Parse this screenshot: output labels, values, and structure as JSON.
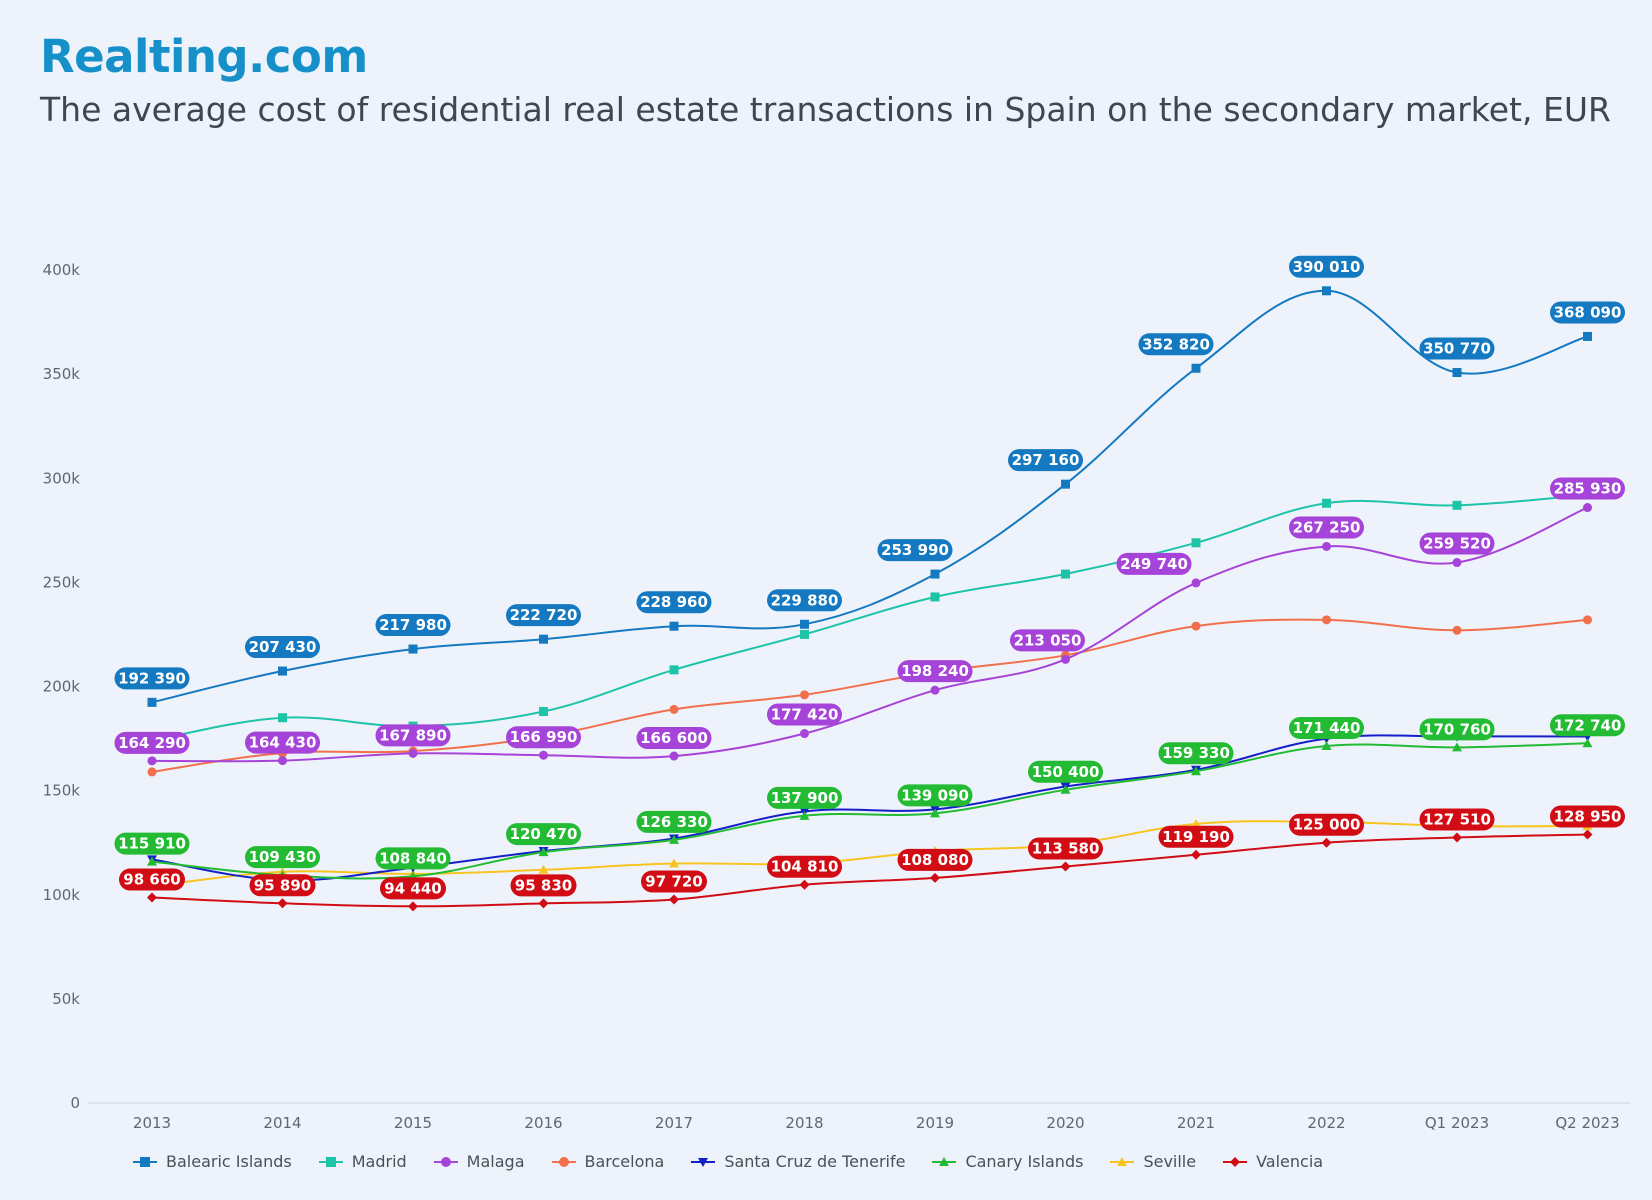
{
  "brand": "Realting.com",
  "chart_data": {
    "type": "line",
    "title": "The average cost of residential real estate transactions in Spain on the secondary market, EUR",
    "categories": [
      "2013",
      "2014",
      "2015",
      "2016",
      "2017",
      "2018",
      "2019",
      "2020",
      "2021",
      "2022",
      "Q1 2023",
      "Q2 2023"
    ],
    "ylim": [
      0,
      400000
    ],
    "yticks": [
      {
        "value": 0,
        "label": "0"
      },
      {
        "value": 50000,
        "label": "50k"
      },
      {
        "value": 100000,
        "label": "100k"
      },
      {
        "value": 150000,
        "label": "150k"
      },
      {
        "value": 200000,
        "label": "200k"
      },
      {
        "value": 250000,
        "label": "250k"
      },
      {
        "value": 300000,
        "label": "300k"
      },
      {
        "value": 350000,
        "label": "350k"
      },
      {
        "value": 400000,
        "label": "400k"
      }
    ],
    "grid": false,
    "legend_position": "bottom",
    "series": [
      {
        "name": "Balearic Islands",
        "color": "#1479c0",
        "marker": "square",
        "values": [
          192390,
          207430,
          217980,
          222720,
          228960,
          229880,
          253990,
          297160,
          352820,
          390010,
          350770,
          368090
        ],
        "labels": [
          "192 390",
          "207 430",
          "217 980",
          "222 720",
          "228 960",
          "229 880",
          "253 990",
          "297 160",
          "352 820",
          "390 010",
          "350 770",
          "368 090"
        ]
      },
      {
        "name": "Madrid",
        "color": "#1ec4a8",
        "marker": "square",
        "values": [
          174000,
          185000,
          181000,
          188000,
          208000,
          225000,
          243000,
          254000,
          269000,
          288000,
          287000,
          292000
        ],
        "labels": []
      },
      {
        "name": "Malaga",
        "color": "#a643d8",
        "marker": "circle",
        "values": [
          164290,
          164430,
          167890,
          166990,
          166600,
          177420,
          198240,
          213050,
          249740,
          267250,
          259520,
          285930
        ],
        "labels": [
          "164 290",
          "164 430",
          "167 890",
          "166 990",
          "166 600",
          "177 420",
          "198 240",
          "213 050",
          "249 740",
          "267 250",
          "259 520",
          "285 930"
        ]
      },
      {
        "name": "Barcelona",
        "color": "#f26f4e",
        "marker": "circle",
        "values": [
          159000,
          168000,
          169000,
          176000,
          189000,
          196000,
          207000,
          215000,
          229000,
          232000,
          227000,
          232000
        ],
        "labels": []
      },
      {
        "name": "Santa Cruz de Tenerife",
        "color": "#1420c8",
        "marker": "triangle-down",
        "values": [
          117000,
          107000,
          113000,
          121000,
          127000,
          140000,
          141000,
          152000,
          160000,
          175000,
          176000,
          176000
        ],
        "labels": []
      },
      {
        "name": "Canary Islands",
        "color": "#22bb33",
        "marker": "triangle",
        "values": [
          115910,
          109430,
          108840,
          120470,
          126330,
          137900,
          139090,
          150400,
          159330,
          171440,
          170760,
          172740
        ],
        "labels": [
          "115 910",
          "109 430",
          "108 840",
          "120 470",
          "126 330",
          "137 900",
          "139 090",
          "150 400",
          "159 330",
          "171 440",
          "170 760",
          "172 740"
        ]
      },
      {
        "name": "Seville",
        "color": "#f8c420",
        "marker": "triangle",
        "values": [
          104000,
          111000,
          110000,
          112000,
          115000,
          115000,
          121000,
          124000,
          134000,
          135000,
          133000,
          133000
        ],
        "labels": []
      },
      {
        "name": "Valencia",
        "color": "#d10c14",
        "marker": "diamond",
        "values": [
          98660,
          95890,
          94440,
          95830,
          97720,
          104810,
          108080,
          113580,
          119190,
          125000,
          127510,
          128950
        ],
        "labels": [
          "98 660",
          "95 890",
          "94 440",
          "95 830",
          "97 720",
          "104 810",
          "108 080",
          "113 580",
          "119 190",
          "125 000",
          "127 510",
          "128 950"
        ]
      }
    ]
  }
}
